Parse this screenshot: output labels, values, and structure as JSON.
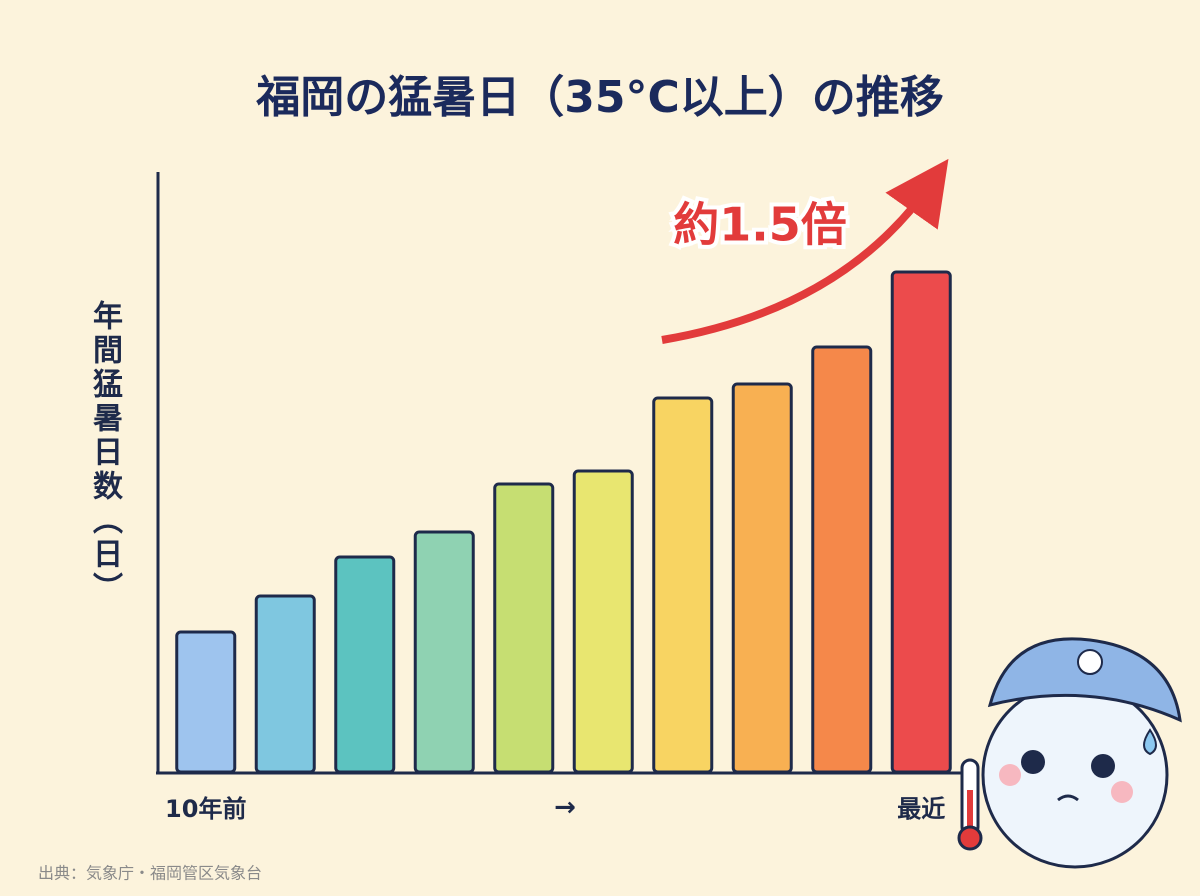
{
  "chart_data": {
    "type": "bar",
    "title": "福岡の猛暑日（35°C以上）の推移",
    "y_label": "年間猛暑日数（日）",
    "categories": [
      "10年前",
      null,
      null,
      null,
      null,
      null,
      null,
      null,
      null,
      "最近"
    ],
    "x_arrow": "→",
    "values": [
      14,
      17.6,
      21.5,
      24,
      28.8,
      30.1,
      37.4,
      38.8,
      42.5,
      50
    ],
    "colors": [
      "#9ec4ee",
      "#7fc7e0",
      "#5cc3c0",
      "#8fd2b2",
      "#c6de72",
      "#e8e670",
      "#f8d462",
      "#f8b052",
      "#f5884a",
      "#ec4b4c"
    ],
    "ylim": [
      0,
      60
    ],
    "annotation": "約1.5倍",
    "source": "出典：気象庁・福岡管区気象台"
  }
}
